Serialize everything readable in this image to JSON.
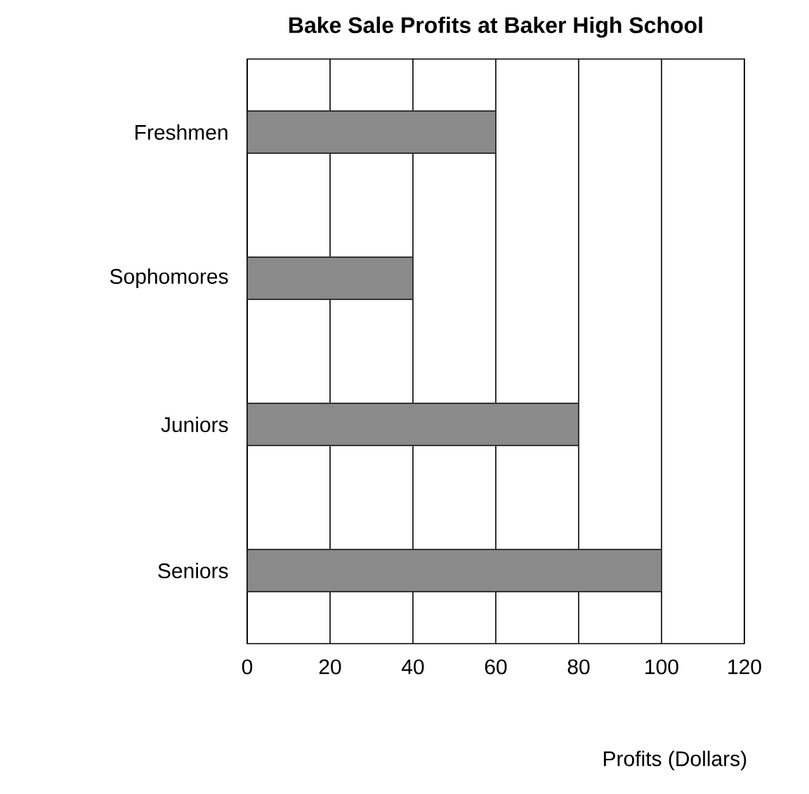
{
  "chart_data": {
    "type": "bar",
    "orientation": "horizontal",
    "title": "Bake Sale Profits at Baker High School",
    "xlabel": "Profits (Dollars)",
    "categories": [
      "Freshmen",
      "Sophomores",
      "Juniors",
      "Seniors"
    ],
    "values": [
      60,
      40,
      80,
      100
    ],
    "color": "#8a8a8a",
    "xlim": [
      0,
      120
    ],
    "xticks": [
      0,
      20,
      40,
      60,
      80,
      100,
      120
    ],
    "grid": "x"
  }
}
